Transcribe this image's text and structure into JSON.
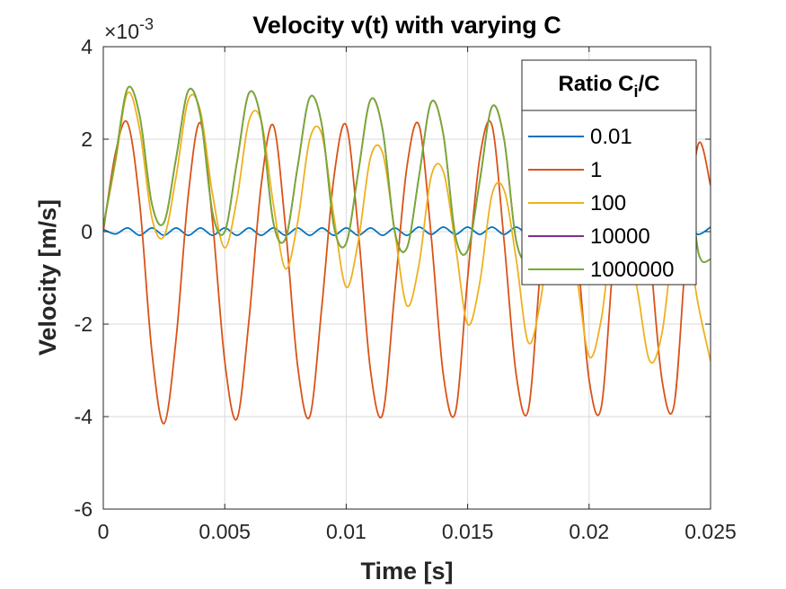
{
  "chart_data": {
    "type": "line",
    "title": "Velocity v(t) with varying C",
    "xlabel": "Time [s]",
    "ylabel": "Velocity [m/s]",
    "exponent_label": {
      "prefix": "×10",
      "power": "-3"
    },
    "xlim": [
      0,
      0.025
    ],
    "ylim": [
      -6,
      4
    ],
    "xticks": [
      0,
      0.005,
      0.01,
      0.015,
      0.02,
      0.025
    ],
    "xtick_labels": [
      "0",
      "0.005",
      "0.01",
      "0.015",
      "0.02",
      "0.025"
    ],
    "yticks": [
      -6,
      -4,
      -2,
      0,
      2,
      4
    ],
    "ytick_labels": [
      "-6",
      "-4",
      "-2",
      "0",
      "2",
      "4"
    ],
    "grid": true,
    "legend": {
      "title_main": "Ratio C",
      "title_sub": "i",
      "title_tail": "/C",
      "placement": "top-right"
    },
    "series": [
      {
        "name": "0.01",
        "color": "#0072BD",
        "x": [
          0,
          0.0005,
          0.001,
          0.0015,
          0.002,
          0.0025,
          0.003,
          0.0035,
          0.004,
          0.0045,
          0.005,
          0.0055,
          0.006,
          0.0065,
          0.007,
          0.0075,
          0.008,
          0.0085,
          0.009,
          0.0095,
          0.01,
          0.0105,
          0.011,
          0.0115,
          0.012,
          0.0125,
          0.013,
          0.0135,
          0.014,
          0.0145,
          0.015,
          0.0155,
          0.016,
          0.0165,
          0.017,
          0.0175,
          0.018,
          0.0185,
          0.019,
          0.0195,
          0.02,
          0.0205,
          0.021,
          0.0215,
          0.022,
          0.0225,
          0.023,
          0.0235,
          0.024,
          0.0245,
          0.025
        ],
        "values": [
          0.05,
          -0.05,
          0.08,
          -0.08,
          0.08,
          -0.08,
          0.08,
          -0.08,
          0.08,
          -0.08,
          0.08,
          -0.08,
          0.08,
          -0.08,
          0.08,
          -0.08,
          0.08,
          -0.08,
          0.08,
          -0.08,
          0.08,
          -0.08,
          0.08,
          -0.08,
          0.08,
          -0.08,
          0.1,
          -0.06,
          0.1,
          -0.06,
          0.1,
          -0.06,
          0.1,
          -0.06,
          0.1,
          -0.06,
          0.1,
          -0.06,
          0.1,
          -0.06,
          0.1,
          -0.06,
          0.1,
          -0.06,
          0.1,
          -0.06,
          0.1,
          -0.06,
          0.1,
          -0.06,
          0.1
        ]
      },
      {
        "name": "1",
        "color": "#D95319",
        "x": [
          0,
          0.0005,
          0.001,
          0.0015,
          0.002,
          0.0025,
          0.003,
          0.0035,
          0.004,
          0.0045,
          0.005,
          0.0055,
          0.006,
          0.0065,
          0.007,
          0.0075,
          0.008,
          0.0085,
          0.009,
          0.0095,
          0.01,
          0.0105,
          0.011,
          0.0115,
          0.012,
          0.0125,
          0.013,
          0.0135,
          0.014,
          0.0145,
          0.015,
          0.0155,
          0.016,
          0.0165,
          0.017,
          0.0175,
          0.018,
          0.0185,
          0.019,
          0.0195,
          0.02,
          0.0205,
          0.021,
          0.0215,
          0.022,
          0.0225,
          0.023,
          0.0235,
          0.024,
          0.0245,
          0.025
        ],
        "values": [
          0,
          1.7,
          2.35,
          0.6,
          -2.6,
          -4.15,
          -2.3,
          0.8,
          2.35,
          0.2,
          -2.8,
          -4.05,
          -1.9,
          1.0,
          2.3,
          0.1,
          -2.9,
          -4.0,
          -1.6,
          1.2,
          2.3,
          0.0,
          -3.0,
          -3.95,
          -1.3,
          1.4,
          2.3,
          -0.1,
          -3.1,
          -3.9,
          -1.0,
          1.6,
          2.3,
          -0.2,
          -3.1,
          -3.85,
          -0.8,
          1.7,
          2.3,
          -0.3,
          -3.2,
          -3.8,
          -0.6,
          1.8,
          2.3,
          -0.4,
          -3.2,
          -3.75,
          -0.4,
          1.9,
          1.0
        ]
      },
      {
        "name": "100",
        "color": "#EDB120",
        "x": [
          0,
          0.0005,
          0.001,
          0.0015,
          0.002,
          0.0025,
          0.003,
          0.0035,
          0.004,
          0.0045,
          0.005,
          0.0055,
          0.006,
          0.0065,
          0.007,
          0.0075,
          0.008,
          0.0085,
          0.009,
          0.0095,
          0.01,
          0.0105,
          0.011,
          0.0115,
          0.012,
          0.0125,
          0.013,
          0.0135,
          0.014,
          0.0145,
          0.015,
          0.0155,
          0.016,
          0.0165,
          0.017,
          0.0175,
          0.018,
          0.0185,
          0.019,
          0.0195,
          0.02,
          0.0205,
          0.021,
          0.0215,
          0.022,
          0.0225,
          0.023,
          0.0235,
          0.024,
          0.0245,
          0.025
        ],
        "values": [
          0.1,
          1.5,
          3.0,
          2.2,
          0.3,
          -0.1,
          1.2,
          2.85,
          2.6,
          0.8,
          -0.35,
          0.7,
          2.4,
          2.4,
          0.6,
          -0.8,
          0.2,
          2.0,
          2.1,
          0.3,
          -1.2,
          -0.2,
          1.6,
          1.7,
          0.0,
          -1.6,
          -0.7,
          1.2,
          1.3,
          -0.3,
          -2.0,
          -1.1,
          0.8,
          0.9,
          -0.6,
          -2.4,
          -1.5,
          0.4,
          0.5,
          -1.0,
          -2.7,
          -1.9,
          0.1,
          0.2,
          -1.3,
          -2.8,
          -2.2,
          -0.2,
          -0.1,
          -1.6,
          -2.8
        ]
      },
      {
        "name": "10000",
        "color": "#7E2F8E",
        "x": [
          0,
          0.0005,
          0.001,
          0.0015,
          0.002,
          0.0025,
          0.003,
          0.0035,
          0.004,
          0.0045,
          0.005,
          0.0055,
          0.006,
          0.0065,
          0.007,
          0.0075,
          0.008,
          0.0085,
          0.009,
          0.0095,
          0.01,
          0.0105,
          0.011,
          0.0115,
          0.012,
          0.0125,
          0.013,
          0.0135,
          0.014,
          0.0145,
          0.015,
          0.0155,
          0.016,
          0.0165,
          0.017,
          0.0175,
          0.018,
          0.0185,
          0.019,
          0.0195,
          0.02,
          0.0205,
          0.021,
          0.0215,
          0.022,
          0.0225,
          0.023,
          0.0235,
          0.024,
          0.0245,
          0.025
        ],
        "values": [
          0.1,
          1.6,
          3.1,
          2.5,
          0.6,
          0.2,
          1.6,
          3.05,
          2.5,
          0.4,
          0.0,
          1.5,
          3.0,
          2.4,
          0.2,
          -0.15,
          1.4,
          2.9,
          2.3,
          0.1,
          -0.25,
          1.3,
          2.85,
          2.2,
          0.0,
          -0.35,
          1.2,
          2.8,
          2.1,
          -0.1,
          -0.4,
          1.1,
          2.7,
          2.0,
          -0.2,
          -0.5,
          1.0,
          2.6,
          1.9,
          -0.3,
          -0.55,
          0.9,
          2.5,
          1.8,
          -0.4,
          -0.6,
          0.8,
          2.4,
          1.7,
          -0.45,
          -0.6
        ]
      },
      {
        "name": "1000000",
        "color": "#77AC30",
        "x": [
          0,
          0.0005,
          0.001,
          0.0015,
          0.002,
          0.0025,
          0.003,
          0.0035,
          0.004,
          0.0045,
          0.005,
          0.0055,
          0.006,
          0.0065,
          0.007,
          0.0075,
          0.008,
          0.0085,
          0.009,
          0.0095,
          0.01,
          0.0105,
          0.011,
          0.0115,
          0.012,
          0.0125,
          0.013,
          0.0135,
          0.014,
          0.0145,
          0.015,
          0.0155,
          0.016,
          0.0165,
          0.017,
          0.0175,
          0.018,
          0.0185,
          0.019,
          0.0195,
          0.02,
          0.0205,
          0.021,
          0.0215,
          0.022,
          0.0225,
          0.023,
          0.0235,
          0.024,
          0.0245,
          0.025
        ],
        "values": [
          0.1,
          1.6,
          3.1,
          2.5,
          0.6,
          0.2,
          1.6,
          3.05,
          2.5,
          0.4,
          0.0,
          1.5,
          3.0,
          2.4,
          0.2,
          -0.15,
          1.4,
          2.9,
          2.3,
          0.1,
          -0.25,
          1.3,
          2.85,
          2.2,
          0.0,
          -0.35,
          1.2,
          2.8,
          2.1,
          -0.1,
          -0.4,
          1.1,
          2.7,
          2.0,
          -0.2,
          -0.5,
          1.0,
          2.6,
          1.9,
          -0.3,
          -0.55,
          0.9,
          2.5,
          1.8,
          -0.4,
          -0.6,
          0.8,
          2.4,
          1.7,
          -0.45,
          -0.6
        ]
      }
    ]
  }
}
